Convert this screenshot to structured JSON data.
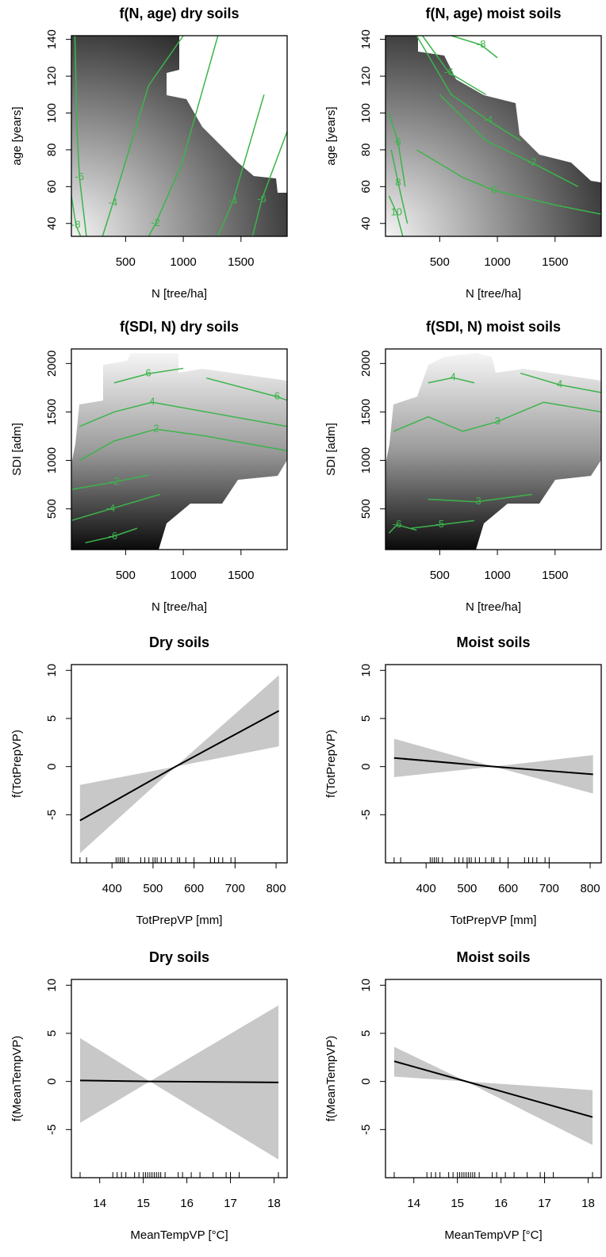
{
  "chart_data": [
    {
      "type": "contour",
      "title": "f(N, age) dry soils",
      "xlabel": "N [tree/ha]",
      "ylabel": "age [years]",
      "xlim": [
        30,
        1900
      ],
      "ylim": [
        33,
        142
      ],
      "xticks": [
        500,
        1000,
        1500
      ],
      "yticks": [
        40,
        60,
        80,
        100,
        120,
        140
      ],
      "color": "#3cb44b",
      "contours": [
        {
          "level": -8,
          "x": [
            30,
            70,
            110
          ],
          "y": [
            55,
            39,
            33
          ]
        },
        {
          "level": -6,
          "x": [
            60,
            80,
            100,
            160
          ],
          "y": [
            142,
            90,
            65,
            33
          ]
        },
        {
          "level": -4,
          "x": [
            1000,
            700,
            390,
            300
          ],
          "y": [
            142,
            115,
            51,
            33
          ]
        },
        {
          "level": -2,
          "x": [
            1300,
            985,
            760,
            700
          ],
          "y": [
            142,
            72,
            40,
            33
          ]
        },
        {
          "level": -4,
          "x": [
            1700,
            1430,
            1300
          ],
          "y": [
            110,
            52,
            33
          ]
        },
        {
          "level": -6,
          "x": [
            1900,
            1680,
            1600
          ],
          "y": [
            90,
            53,
            33
          ]
        }
      ]
    },
    {
      "type": "contour",
      "title": "f(N, age) moist soils",
      "xlabel": "N [tree/ha]",
      "ylabel": "age [years]",
      "xlim": [
        30,
        1900
      ],
      "ylim": [
        33,
        142
      ],
      "xticks": [
        500,
        1000,
        1500
      ],
      "yticks": [
        40,
        60,
        80,
        100,
        120,
        140
      ],
      "color": "#3cb44b",
      "contours": [
        {
          "level": -8,
          "x": [
            600,
            860,
            1000
          ],
          "y": [
            142,
            137,
            130
          ]
        },
        {
          "level": -6,
          "x": [
            350,
            580,
            900
          ],
          "y": [
            142,
            122,
            110
          ]
        },
        {
          "level": -4,
          "x": [
            300,
            600,
            920,
            1200
          ],
          "y": [
            142,
            110,
            96,
            85
          ]
        },
        {
          "level": -2,
          "x": [
            500,
            900,
            1300,
            1700
          ],
          "y": [
            110,
            85,
            73,
            60
          ]
        },
        {
          "level": 0,
          "x": [
            300,
            700,
            970,
            1500,
            1900
          ],
          "y": [
            80,
            65,
            58,
            50,
            45
          ]
        },
        {
          "level": 6,
          "x": [
            60,
            140,
            200
          ],
          "y": [
            100,
            84,
            60
          ]
        },
        {
          "level": 8,
          "x": [
            80,
            140,
            220
          ],
          "y": [
            80,
            62,
            40
          ]
        },
        {
          "level": 10,
          "x": [
            60,
            125,
            180
          ],
          "y": [
            55,
            46,
            33
          ]
        }
      ]
    },
    {
      "type": "contour",
      "title": "f(SDI, N) dry soils",
      "xlabel": "N [tree/ha]",
      "ylabel": "SDI [adm]",
      "xlim": [
        30,
        1900
      ],
      "ylim": [
        80,
        2150
      ],
      "xticks": [
        500,
        1000,
        1500
      ],
      "yticks": [
        500,
        1000,
        1500,
        2000
      ],
      "color": "#3cb44b",
      "contours": [
        {
          "level": 6,
          "x": [
            400,
            697,
            1000
          ],
          "y": [
            1800,
            1894,
            1950
          ]
        },
        {
          "level": 6,
          "x": [
            1200,
            1813,
            1900
          ],
          "y": [
            1850,
            1657,
            1620
          ]
        },
        {
          "level": 4,
          "x": [
            100,
            400,
            730,
            1200,
            1900
          ],
          "y": [
            1350,
            1500,
            1600,
            1500,
            1350
          ]
        },
        {
          "level": 2,
          "x": [
            100,
            400,
            765,
            1200,
            1900
          ],
          "y": [
            1000,
            1200,
            1323,
            1250,
            1100
          ]
        },
        {
          "level": -2,
          "x": [
            30,
            405,
            700
          ],
          "y": [
            700,
            777,
            850
          ]
        },
        {
          "level": -4,
          "x": [
            30,
            370,
            800
          ],
          "y": [
            380,
            500,
            650
          ]
        },
        {
          "level": -6,
          "x": [
            150,
            390,
            600
          ],
          "y": [
            150,
            215,
            300
          ]
        }
      ]
    },
    {
      "type": "contour",
      "title": "f(SDI, N) moist soils",
      "xlabel": "N [tree/ha]",
      "ylabel": "SDI [adm]",
      "xlim": [
        30,
        1900
      ],
      "ylim": [
        80,
        2150
      ],
      "xticks": [
        500,
        1000,
        1500
      ],
      "yticks": [
        500,
        1000,
        1500,
        2000
      ],
      "color": "#3cb44b",
      "contours": [
        {
          "level": 4,
          "x": [
            400,
            615,
            800
          ],
          "y": [
            1800,
            1853,
            1800
          ]
        },
        {
          "level": 4,
          "x": [
            1200,
            1540,
            1900
          ],
          "y": [
            1900,
            1780,
            1700
          ]
        },
        {
          "level": 3,
          "x": [
            100,
            400,
            700,
            1000,
            1400,
            1900
          ],
          "y": [
            1300,
            1450,
            1300,
            1400,
            1600,
            1500
          ]
        },
        {
          "level": -3,
          "x": [
            400,
            820,
            1300
          ],
          "y": [
            600,
            573,
            650
          ]
        },
        {
          "level": -5,
          "x": [
            250,
            500,
            800
          ],
          "y": [
            300,
            336,
            380
          ]
        },
        {
          "level": -6,
          "x": [
            60,
            130,
            300
          ],
          "y": [
            250,
            336,
            280
          ]
        }
      ]
    },
    {
      "type": "line",
      "title": "Dry soils",
      "xlabel": "TotPrepVP [mm]",
      "ylabel": "f(TotPrepVP)",
      "xlim": [
        301,
        827
      ],
      "ylim": [
        -10,
        10.6
      ],
      "xticks": [
        400,
        500,
        600,
        700,
        800
      ],
      "yticks": [
        -5,
        0,
        5,
        10
      ],
      "color": "#000000",
      "band_color": "#c8c8c8",
      "x": [
        322,
        555,
        807
      ],
      "values": [
        -5.6,
        0,
        5.8
      ],
      "lower": [
        -9,
        0,
        2.1
      ],
      "upper": [
        -1.9,
        0,
        9.5
      ],
      "rug": [
        322,
        338,
        410,
        415,
        420,
        425,
        430,
        440,
        470,
        480,
        490,
        500,
        505,
        510,
        520,
        530,
        545,
        560,
        565,
        580,
        600,
        640,
        650,
        660,
        670,
        690,
        700
      ]
    },
    {
      "type": "line",
      "title": "Moist soils",
      "xlabel": "TotPrepVP [mm]",
      "ylabel": "f(TotPrepVP)",
      "xlim": [
        301,
        827
      ],
      "ylim": [
        -10,
        10.6
      ],
      "xticks": [
        400,
        500,
        600,
        700,
        800
      ],
      "yticks": [
        -5,
        0,
        5,
        10
      ],
      "color": "#000000",
      "band_color": "#c8c8c8",
      "x": [
        322,
        565,
        807
      ],
      "values": [
        0.9,
        0,
        -0.8
      ],
      "lower": [
        -1.1,
        0,
        -2.8
      ],
      "upper": [
        2.9,
        0,
        1.2
      ],
      "rug": [
        322,
        338,
        410,
        415,
        420,
        425,
        430,
        440,
        470,
        480,
        490,
        500,
        505,
        510,
        520,
        530,
        545,
        560,
        565,
        580,
        600,
        640,
        650,
        660,
        670,
        690,
        700
      ]
    },
    {
      "type": "line",
      "title": "Dry soils",
      "xlabel": "MeanTempVP [°C]",
      "ylabel": "f(MeanTempVP)",
      "xlim": [
        13.35,
        18.3
      ],
      "ylim": [
        -10,
        10.6
      ],
      "xticks": [
        14,
        15,
        16,
        17,
        18
      ],
      "yticks": [
        -5,
        0,
        5,
        10
      ],
      "color": "#000000",
      "band_color": "#c8c8c8",
      "x": [
        13.55,
        15.15,
        18.1
      ],
      "values": [
        0.1,
        0,
        -0.1
      ],
      "lower": [
        -4.3,
        0,
        -8.1
      ],
      "upper": [
        4.5,
        0,
        7.9
      ],
      "rug": [
        13.55,
        14.3,
        14.4,
        14.5,
        14.6,
        14.8,
        14.9,
        15.0,
        15.05,
        15.1,
        15.15,
        15.2,
        15.25,
        15.3,
        15.35,
        15.4,
        15.5,
        15.8,
        15.9,
        16.1,
        16.3,
        16.6,
        16.9,
        17.0,
        17.2,
        18.1
      ]
    },
    {
      "type": "line",
      "title": "Moist soils",
      "xlabel": "MeanTempVP [°C]",
      "ylabel": "f(MeanTempVP)",
      "xlim": [
        13.35,
        18.3
      ],
      "ylim": [
        -10,
        10.6
      ],
      "xticks": [
        14,
        15,
        16,
        17,
        18
      ],
      "yticks": [
        -5,
        0,
        5,
        10
      ],
      "color": "#000000",
      "band_color": "#c8c8c8",
      "x": [
        13.55,
        15.2,
        18.1
      ],
      "values": [
        2.1,
        0,
        -3.7
      ],
      "lower": [
        0.5,
        0,
        -6.6
      ],
      "upper": [
        3.6,
        0,
        -0.9
      ],
      "rug": [
        13.55,
        14.3,
        14.4,
        14.5,
        14.6,
        14.8,
        14.9,
        15.0,
        15.05,
        15.1,
        15.15,
        15.2,
        15.25,
        15.3,
        15.35,
        15.4,
        15.5,
        15.8,
        15.9,
        16.1,
        16.3,
        16.6,
        16.9,
        17.0,
        17.2,
        18.1
      ]
    }
  ]
}
